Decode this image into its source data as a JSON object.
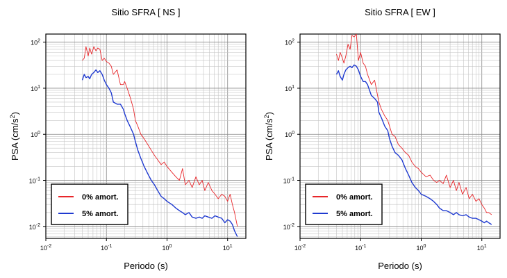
{
  "chart_data": [
    {
      "type": "line",
      "title": "Sitio SFRA [ NS ]",
      "xlabel": "Periodo (s)",
      "ylabel": "PSA (cm/s²)",
      "ylabel_parts": {
        "base": "PSA (cm/s",
        "sup": "2",
        "end": ")"
      },
      "xscale": "log",
      "yscale": "log",
      "xlim": [
        0.01,
        20
      ],
      "ylim": [
        0.0055,
        150
      ],
      "grid": true,
      "legend_position": "bottom-left",
      "xticks": [
        {
          "label": "10",
          "exp": "-2",
          "value": 0.01
        },
        {
          "label": "10",
          "exp": "-1",
          "value": 0.1
        },
        {
          "label": "10",
          "exp": "0",
          "value": 1
        },
        {
          "label": "10",
          "exp": "1",
          "value": 10
        }
      ],
      "yticks": [
        {
          "label": "10",
          "exp": "-2",
          "value": 0.01
        },
        {
          "label": "10",
          "exp": "-1",
          "value": 0.1
        },
        {
          "label": "10",
          "exp": "0",
          "value": 1
        },
        {
          "label": "10",
          "exp": "1",
          "value": 10
        },
        {
          "label": "10",
          "exp": "2",
          "value": 100
        }
      ],
      "series": [
        {
          "name": "0% amort.",
          "color": "#e8262a",
          "x": [
            0.04,
            0.043,
            0.046,
            0.05,
            0.053,
            0.057,
            0.062,
            0.067,
            0.072,
            0.078,
            0.085,
            0.092,
            0.1,
            0.11,
            0.12,
            0.13,
            0.15,
            0.17,
            0.19,
            0.2,
            0.22,
            0.25,
            0.28,
            0.3,
            0.33,
            0.37,
            0.42,
            0.48,
            0.55,
            0.62,
            0.7,
            0.8,
            0.9,
            1.0,
            1.2,
            1.4,
            1.6,
            1.8,
            2.0,
            2.3,
            2.6,
            3.0,
            3.4,
            3.8,
            4.2,
            4.8,
            5.5,
            6.2,
            7.0,
            8.0,
            9.0,
            10.0,
            11.0,
            12.0,
            13.0,
            14.5
          ],
          "y": [
            40,
            45,
            80,
            50,
            75,
            55,
            80,
            65,
            75,
            70,
            40,
            45,
            38,
            35,
            30,
            20,
            25,
            12,
            12,
            14,
            10,
            6,
            3.5,
            2.0,
            1.5,
            1.0,
            0.8,
            0.6,
            0.45,
            0.35,
            0.28,
            0.22,
            0.25,
            0.2,
            0.15,
            0.12,
            0.1,
            0.18,
            0.08,
            0.1,
            0.07,
            0.12,
            0.08,
            0.1,
            0.06,
            0.09,
            0.06,
            0.05,
            0.04,
            0.05,
            0.045,
            0.035,
            0.05,
            0.03,
            0.02,
            0.01
          ]
        },
        {
          "name": "5% amort.",
          "color": "#1f3ad0",
          "x": [
            0.04,
            0.043,
            0.046,
            0.05,
            0.053,
            0.057,
            0.062,
            0.067,
            0.072,
            0.078,
            0.085,
            0.092,
            0.1,
            0.11,
            0.12,
            0.13,
            0.15,
            0.17,
            0.19,
            0.2,
            0.22,
            0.25,
            0.28,
            0.3,
            0.33,
            0.37,
            0.42,
            0.48,
            0.55,
            0.62,
            0.7,
            0.8,
            0.9,
            1.0,
            1.2,
            1.4,
            1.6,
            1.8,
            2.0,
            2.3,
            2.6,
            3.0,
            3.4,
            3.8,
            4.2,
            4.8,
            5.5,
            6.2,
            7.0,
            8.0,
            9.0,
            10.0,
            11.0,
            12.0,
            13.0,
            14.5
          ],
          "y": [
            15,
            20,
            17,
            18,
            16,
            20,
            22,
            25,
            22,
            24,
            20,
            15,
            12,
            10,
            8,
            5,
            4.5,
            4.5,
            3.5,
            2.8,
            2.0,
            1.4,
            1.0,
            0.7,
            0.45,
            0.3,
            0.2,
            0.14,
            0.1,
            0.08,
            0.06,
            0.045,
            0.04,
            0.035,
            0.03,
            0.025,
            0.022,
            0.02,
            0.018,
            0.02,
            0.016,
            0.015,
            0.016,
            0.015,
            0.017,
            0.016,
            0.015,
            0.017,
            0.016,
            0.015,
            0.012,
            0.014,
            0.013,
            0.011,
            0.008,
            0.006
          ]
        }
      ]
    },
    {
      "type": "line",
      "title": "Sitio SFRA [ EW ]",
      "xlabel": "Periodo (s)",
      "ylabel": "PSA (cm/s²)",
      "ylabel_parts": {
        "base": "PSA (cm/s",
        "sup": "2",
        "end": ")"
      },
      "xscale": "log",
      "yscale": "log",
      "xlim": [
        0.01,
        20
      ],
      "ylim": [
        0.0055,
        150
      ],
      "grid": true,
      "legend_position": "bottom-left",
      "xticks": [
        {
          "label": "10",
          "exp": "-2",
          "value": 0.01
        },
        {
          "label": "10",
          "exp": "-1",
          "value": 0.1
        },
        {
          "label": "10",
          "exp": "0",
          "value": 1
        },
        {
          "label": "10",
          "exp": "1",
          "value": 10
        }
      ],
      "yticks": [
        {
          "label": "10",
          "exp": "-2",
          "value": 0.01
        },
        {
          "label": "10",
          "exp": "-1",
          "value": 0.1
        },
        {
          "label": "10",
          "exp": "0",
          "value": 1
        },
        {
          "label": "10",
          "exp": "1",
          "value": 10
        },
        {
          "label": "10",
          "exp": "2",
          "value": 100
        }
      ],
      "series": [
        {
          "name": "0% amort.",
          "color": "#e8262a",
          "x": [
            0.04,
            0.043,
            0.046,
            0.05,
            0.053,
            0.057,
            0.062,
            0.067,
            0.072,
            0.078,
            0.085,
            0.092,
            0.1,
            0.11,
            0.12,
            0.13,
            0.15,
            0.17,
            0.19,
            0.2,
            0.22,
            0.25,
            0.28,
            0.3,
            0.33,
            0.37,
            0.42,
            0.48,
            0.55,
            0.62,
            0.7,
            0.8,
            0.9,
            1.0,
            1.2,
            1.4,
            1.6,
            1.8,
            2.0,
            2.3,
            2.6,
            3.0,
            3.4,
            3.8,
            4.2,
            4.8,
            5.5,
            6.2,
            7.0,
            8.0,
            9.0,
            10.0,
            11.0,
            12.0,
            13.0,
            14.5
          ],
          "y": [
            55,
            40,
            60,
            45,
            35,
            50,
            90,
            70,
            140,
            130,
            150,
            40,
            60,
            35,
            30,
            20,
            12,
            15,
            7,
            5,
            3.5,
            2.5,
            2.0,
            1.5,
            1.0,
            0.9,
            0.6,
            0.5,
            0.4,
            0.35,
            0.25,
            0.2,
            0.18,
            0.15,
            0.12,
            0.13,
            0.1,
            0.09,
            0.1,
            0.085,
            0.13,
            0.07,
            0.1,
            0.06,
            0.09,
            0.05,
            0.07,
            0.04,
            0.05,
            0.035,
            0.04,
            0.03,
            0.025,
            0.02,
            0.02,
            0.018
          ]
        },
        {
          "name": "5% amort.",
          "color": "#1f3ad0",
          "x": [
            0.04,
            0.043,
            0.046,
            0.05,
            0.053,
            0.057,
            0.062,
            0.067,
            0.072,
            0.078,
            0.085,
            0.092,
            0.1,
            0.11,
            0.12,
            0.13,
            0.15,
            0.17,
            0.19,
            0.2,
            0.22,
            0.25,
            0.28,
            0.3,
            0.33,
            0.37,
            0.42,
            0.48,
            0.55,
            0.62,
            0.7,
            0.8,
            0.9,
            1.0,
            1.2,
            1.4,
            1.6,
            1.8,
            2.0,
            2.3,
            2.6,
            3.0,
            3.4,
            3.8,
            4.2,
            4.8,
            5.5,
            6.2,
            7.0,
            8.0,
            9.0,
            10.0,
            11.0,
            12.0,
            13.0,
            14.5
          ],
          "y": [
            20,
            24,
            18,
            15,
            20,
            25,
            28,
            30,
            28,
            32,
            30,
            25,
            18,
            14,
            14,
            12,
            7,
            6,
            5,
            3,
            2.3,
            1.5,
            1.2,
            0.8,
            0.55,
            0.4,
            0.35,
            0.28,
            0.18,
            0.13,
            0.09,
            0.07,
            0.06,
            0.05,
            0.045,
            0.04,
            0.035,
            0.03,
            0.025,
            0.022,
            0.022,
            0.02,
            0.018,
            0.02,
            0.018,
            0.017,
            0.018,
            0.016,
            0.015,
            0.015,
            0.014,
            0.013,
            0.012,
            0.013,
            0.012,
            0.011
          ]
        }
      ]
    }
  ]
}
